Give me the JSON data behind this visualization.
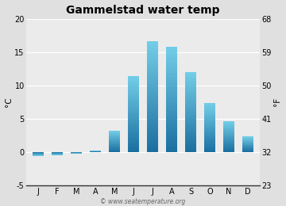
{
  "title": "Gammelstad water temp",
  "months": [
    "J",
    "F",
    "M",
    "A",
    "M",
    "J",
    "J",
    "A",
    "S",
    "O",
    "N",
    "D"
  ],
  "values_c": [
    -0.6,
    -0.5,
    -0.3,
    0.2,
    3.2,
    11.4,
    16.6,
    15.8,
    12.0,
    7.3,
    4.6,
    2.3
  ],
  "ylim_c": [
    -5,
    20
  ],
  "ylim_f": [
    23,
    68
  ],
  "yticks_c": [
    -5,
    0,
    5,
    10,
    15,
    20
  ],
  "yticks_f": [
    23,
    32,
    41,
    50,
    59,
    68
  ],
  "ylabel_left": "°C",
  "ylabel_right": "°F",
  "bar_color_top": "#74cfe8",
  "bar_color_bottom": "#1a6fa0",
  "bg_color": "#e0e0e0",
  "plot_bg_color": "#ebebeb",
  "grid_color": "#ffffff",
  "watermark": "© www.seatemperature.org",
  "title_fontsize": 10,
  "tick_fontsize": 7,
  "label_fontsize": 7.5
}
